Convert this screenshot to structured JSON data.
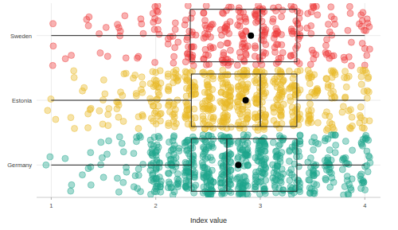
{
  "chart_data": {
    "type": "boxplot",
    "x_label": "Index value",
    "categories": [
      "Sweden",
      "Estonia",
      "Germany"
    ],
    "colors": [
      "#ee3b3b",
      "#e9b825",
      "#1fa58c"
    ],
    "xlim": [
      0.86,
      4.15
    ],
    "xticks": [
      1,
      2,
      3,
      4
    ],
    "grid": true,
    "levels": [
      1,
      1.17,
      1.33,
      1.5,
      1.67,
      1.83,
      2,
      2.17,
      2.33,
      2.5,
      2.67,
      2.83,
      3,
      3.17,
      3.33,
      3.5,
      3.67,
      3.83,
      4
    ],
    "counts": [
      [
        3,
        2,
        3,
        4,
        6,
        5,
        12,
        10,
        25,
        25,
        30,
        30,
        35,
        25,
        25,
        15,
        15,
        8,
        15
      ],
      [
        3,
        4,
        6,
        8,
        10,
        12,
        30,
        30,
        45,
        50,
        55,
        55,
        60,
        45,
        40,
        30,
        25,
        15,
        20
      ],
      [
        2,
        3,
        5,
        6,
        8,
        12,
        50,
        40,
        60,
        70,
        70,
        65,
        65,
        45,
        40,
        30,
        30,
        20,
        25
      ]
    ],
    "whisker_low": [
      1,
      1,
      1
    ],
    "q1": [
      2.33,
      2.34,
      2.34
    ],
    "median": [
      3.0,
      3.0,
      2.68
    ],
    "q3": [
      3.35,
      3.35,
      3.35
    ],
    "whisker_high": [
      4,
      4,
      4
    ],
    "mean": [
      2.91,
      2.86,
      2.79
    ]
  }
}
